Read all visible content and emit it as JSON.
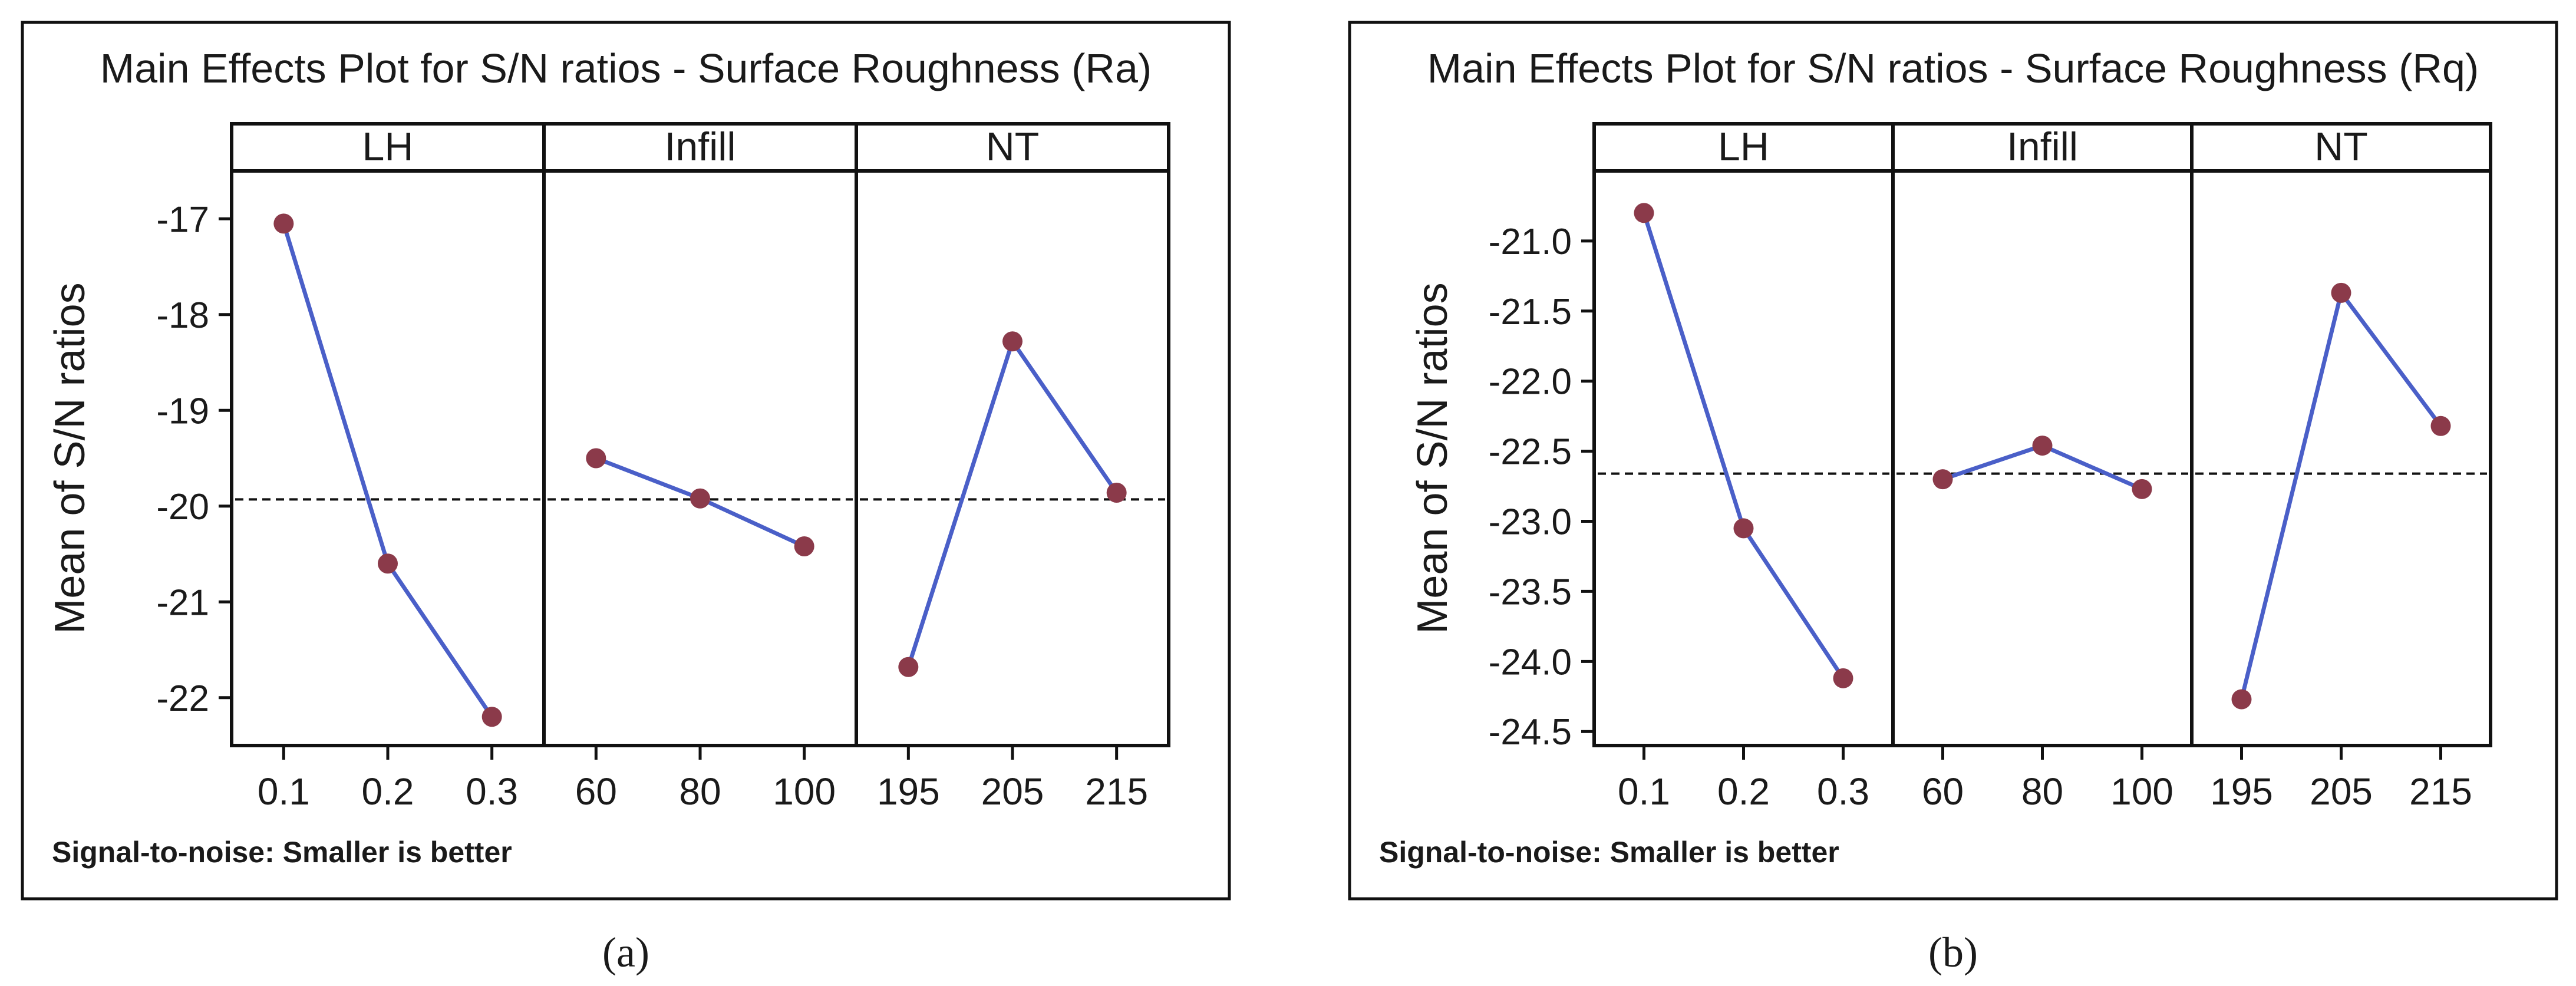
{
  "chart_data": [
    {
      "type": "line",
      "panel_label": "(a)",
      "title": "Main Effects Plot for S/N ratios - Surface Roughness (Ra)",
      "ylabel": "Mean of S/N ratios",
      "footnote": "Signal-to-noise: Smaller is better",
      "ylim": [
        -22.5,
        -16.5
      ],
      "yticks": [
        -17,
        -18,
        -19,
        -20,
        -21,
        -22
      ],
      "ytick_labels": [
        "-17",
        "-18",
        "-19",
        "-20",
        "-21",
        "-22"
      ],
      "overall_mean": -19.93,
      "facets": [
        {
          "name": "LH",
          "x": [
            "0.1",
            "0.2",
            "0.3"
          ],
          "values": [
            -17.05,
            -20.6,
            -22.2
          ]
        },
        {
          "name": "Infill",
          "x": [
            "60",
            "80",
            "100"
          ],
          "values": [
            -19.5,
            -19.92,
            -20.42
          ]
        },
        {
          "name": "NT",
          "x": [
            "195",
            "205",
            "215"
          ],
          "values": [
            -21.68,
            -18.28,
            -19.86
          ]
        }
      ]
    },
    {
      "type": "line",
      "panel_label": "(b)",
      "title": "Main Effects Plot for S/N ratios - Surface Roughness (Rq)",
      "ylabel": "Mean of S/N ratios",
      "footnote": "Signal-to-noise: Smaller is better",
      "ylim": [
        -24.6,
        -20.5
      ],
      "yticks": [
        -21.0,
        -21.5,
        -22.0,
        -22.5,
        -23.0,
        -23.5,
        -24.0,
        -24.5
      ],
      "ytick_labels": [
        "-21.0",
        "-21.5",
        "-22.0",
        "-22.5",
        "-23.0",
        "-23.5",
        "-24.0",
        "-24.5"
      ],
      "overall_mean": -22.66,
      "facets": [
        {
          "name": "LH",
          "x": [
            "0.1",
            "0.2",
            "0.3"
          ],
          "values": [
            -20.8,
            -23.05,
            -24.12
          ]
        },
        {
          "name": "Infill",
          "x": [
            "60",
            "80",
            "100"
          ],
          "values": [
            -22.7,
            -22.46,
            -22.77
          ]
        },
        {
          "name": "NT",
          "x": [
            "195",
            "205",
            "215"
          ],
          "values": [
            -24.27,
            -21.37,
            -22.32
          ]
        }
      ]
    }
  ],
  "colors": {
    "line": "#4a5fc8",
    "marker": "#8b3a4a",
    "mean_line": "#111111",
    "frame": "#111111"
  }
}
